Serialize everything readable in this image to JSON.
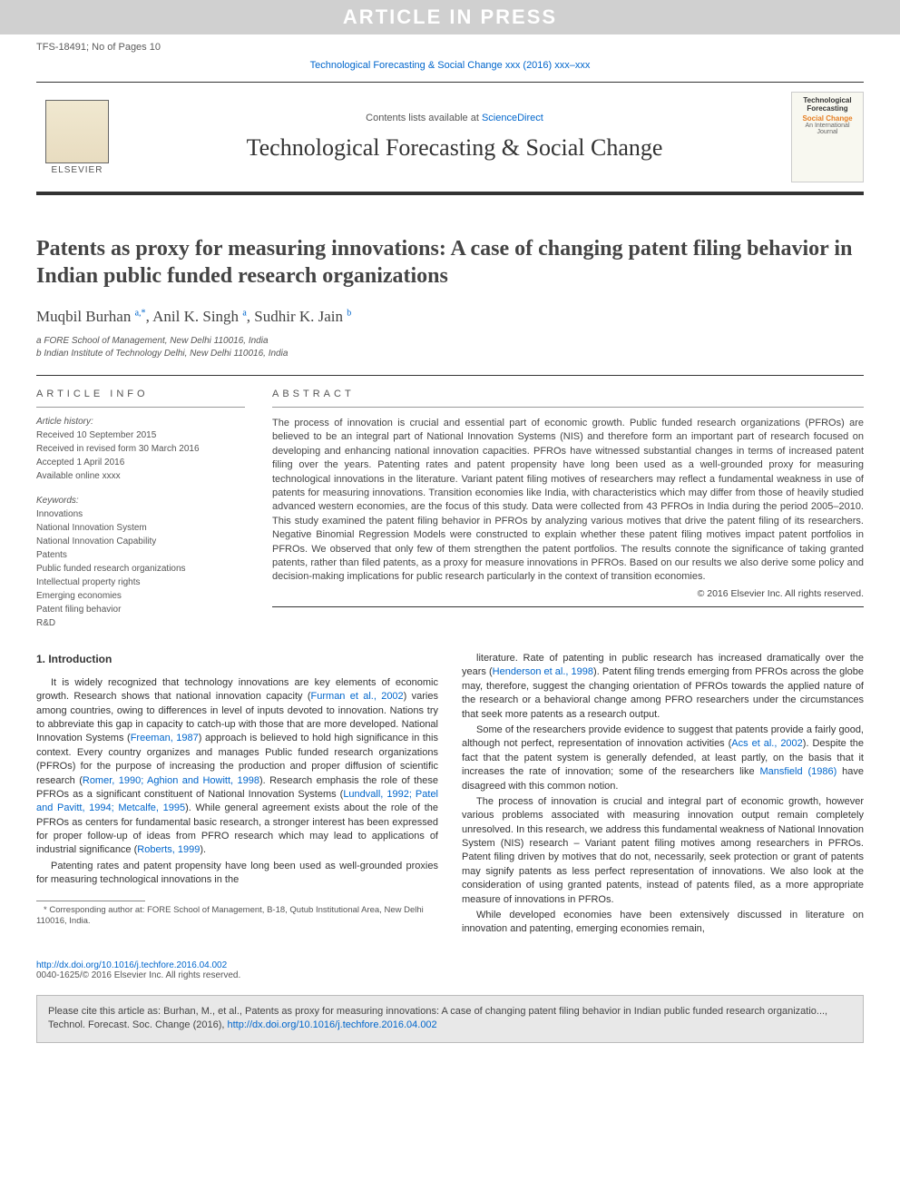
{
  "press_banner": "ARTICLE IN PRESS",
  "header": {
    "manuscript_id": "TFS-18491; No of Pages 10",
    "journal_reference": "Technological Forecasting & Social Change xxx (2016) xxx–xxx",
    "contents_prefix": "Contents lists available at ",
    "contents_link": "ScienceDirect",
    "journal_name": "Technological Forecasting & Social Change",
    "elsevier_label": "ELSEVIER",
    "cover": {
      "line1": "Technological",
      "line2": "Forecasting",
      "line3": "Social Change",
      "line4": "An International Journal"
    }
  },
  "article": {
    "title": "Patents as proxy for measuring innovations: A case of changing patent filing behavior in Indian public funded research organizations",
    "authors_html": "Muqbil Burhan <sup>a,*</sup>, Anil K. Singh <sup>a</sup>, Sudhir K. Jain <sup>b</sup>",
    "affiliations": [
      "a FORE School of Management, New Delhi 110016, India",
      "b Indian Institute of Technology Delhi, New Delhi 110016, India"
    ]
  },
  "info": {
    "section_label": "ARTICLE INFO",
    "history_label": "Article history:",
    "history": [
      "Received 10 September 2015",
      "Received in revised form 30 March 2016",
      "Accepted 1 April 2016",
      "Available online xxxx"
    ],
    "keywords_label": "Keywords:",
    "keywords": [
      "Innovations",
      "National Innovation System",
      "National Innovation Capability",
      "Patents",
      "Public funded research organizations",
      "Intellectual property rights",
      "Emerging economies",
      "Patent filing behavior",
      "R&D"
    ]
  },
  "abstract": {
    "label": "ABSTRACT",
    "text": "The process of innovation is crucial and essential part of economic growth. Public funded research organizations (PFROs) are believed to be an integral part of National Innovation Systems (NIS) and therefore form an important part of research focused on developing and enhancing national innovation capacities. PFROs have witnessed substantial changes in terms of increased patent filing over the years. Patenting rates and patent propensity have long been used as a well-grounded proxy for measuring technological innovations in the literature. Variant patent filing motives of researchers may reflect a fundamental weakness in use of patents for measuring innovations. Transition economies like India, with characteristics which may differ from those of heavily studied advanced western economies, are the focus of this study. Data were collected from 43 PFROs in India during the period 2005–2010. This study examined the patent filing behavior in PFROs by analyzing various motives that drive the patent filing of its researchers. Negative Binomial Regression Models were constructed to explain whether these patent filing motives impact patent portfolios in PFROs. We observed that only few of them strengthen the patent portfolios. The results connote the significance of taking granted patents, rather than filed patents, as a proxy for measure innovations in PFROs. Based on our results we also derive some policy and decision-making implications for public research particularly in the context of transition economies.",
    "copyright": "© 2016 Elsevier Inc. All rights reserved."
  },
  "body": {
    "intro_heading": "1. Introduction",
    "left": {
      "p1_pre": "It is widely recognized that technology innovations are key elements of economic growth. Research shows that national innovation capacity (",
      "p1_cite1": "Furman et al., 2002",
      "p1_mid1": ") varies among countries, owing to differences in level of inputs devoted to innovation. Nations try to abbreviate this gap in capacity to catch-up with those that are more developed. National Innovation Systems (",
      "p1_cite2": "Freeman, 1987",
      "p1_mid2": ") approach is believed to hold high significance in this context. Every country organizes and manages Public funded research organizations (PFROs) for the purpose of increasing the production and proper diffusion of scientific research (",
      "p1_cite3": "Romer, 1990; Aghion and Howitt, 1998",
      "p1_mid3": "). Research emphasis the role of these PFROs as a significant constituent of National Innovation Systems (",
      "p1_cite4": "Lundvall, 1992; Patel and Pavitt, 1994; Metcalfe, 1995",
      "p1_mid4": "). While general agreement exists about the role of the PFROs as centers for fundamental basic research, a stronger interest has been expressed for proper follow-up of ideas from PFRO research which may lead to applications of industrial significance (",
      "p1_cite5": "Roberts, 1999",
      "p1_post": ").",
      "p2": "Patenting rates and patent propensity have long been used as well-grounded proxies for measuring technological innovations in the"
    },
    "right": {
      "p1_pre": "literature. Rate of patenting in public research has increased dramatically over the years (",
      "p1_cite1": "Henderson et al., 1998",
      "p1_post": "). Patent filing trends emerging from PFROs across the globe may, therefore, suggest the changing orientation of PFROs towards the applied nature of the research or a behavioral change among PFRO researchers under the circumstances that seek more patents as a research output.",
      "p2_pre": "Some of the researchers provide evidence to suggest that patents provide a fairly good, although not perfect, representation of innovation activities (",
      "p2_cite1": "Acs et al., 2002",
      "p2_mid": "). Despite the fact that the patent system is generally defended, at least partly, on the basis that it increases the rate of innovation; some of the researchers like ",
      "p2_cite2": "Mansfield (1986)",
      "p2_post": " have disagreed with this common notion.",
      "p3": "The process of innovation is crucial and integral part of economic growth, however various problems associated with measuring innovation output remain completely unresolved. In this research, we address this fundamental weakness of National Innovation System (NIS) research – Variant patent filing motives among researchers in PFROs. Patent filing driven by motives that do not, necessarily, seek protection or grant of patents may signify patents as less perfect representation of innovations. We also look at the consideration of using granted patents, instead of patents filed, as a more appropriate measure of innovations in PFROs.",
      "p4": "While developed economies have been extensively discussed in literature on innovation and patenting, emerging economies remain,"
    },
    "footnote": "* Corresponding author at: FORE School of Management, B-18, Qutub Institutional Area, New Delhi 110016, India."
  },
  "doi": {
    "url": "http://dx.doi.org/10.1016/j.techfore.2016.04.002",
    "line2": "0040-1625/© 2016 Elsevier Inc. All rights reserved."
  },
  "citebox": {
    "text_pre": "Please cite this article as: Burhan, M., et al., Patents as proxy for measuring innovations: A case of changing patent filing behavior in Indian public funded research organizatio..., Technol. Forecast. Soc. Change (2016), ",
    "url": "http://dx.doi.org/10.1016/j.techfore.2016.04.002"
  },
  "colors": {
    "link": "#0066cc",
    "banner_bg": "#d0d0d0",
    "banner_text": "#ffffff",
    "rule": "#333333",
    "citebox_bg": "#e8e8e8"
  }
}
